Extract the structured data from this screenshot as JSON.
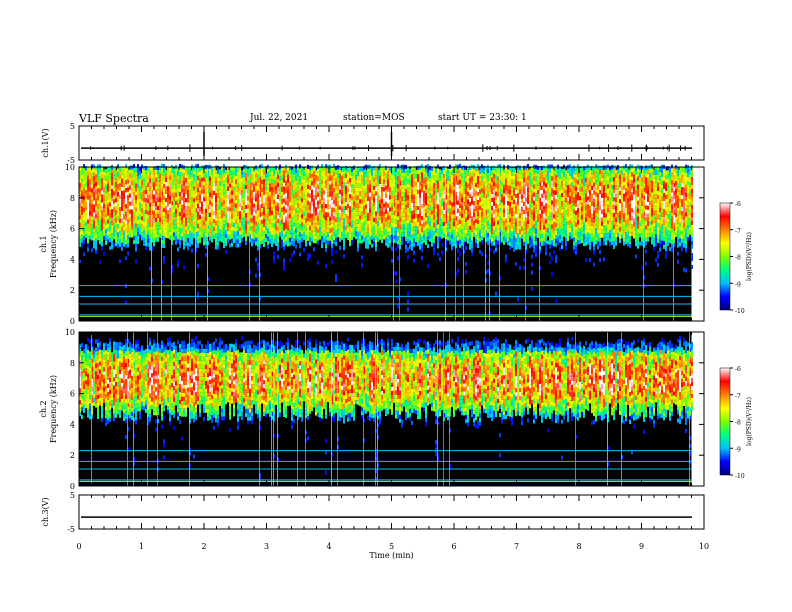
{
  "header": {
    "title": "VLF Spectra",
    "date": "Jul. 22, 2021",
    "station": "station=MOS",
    "start_ut": "start UT =  23:30: 1"
  },
  "chart_data": [
    {
      "type": "line",
      "panel": "ch1-waveform",
      "ylabel": "ch.1(V)",
      "ylim": [
        -5,
        5
      ],
      "yticks": [
        "5",
        "-5"
      ],
      "xlim": [
        0,
        10
      ]
    },
    {
      "type": "heatmap",
      "panel": "ch1-spectrogram",
      "ylabel": "ch.1\nFrequency (kHz)",
      "ylim": [
        0,
        10
      ],
      "yticks": [
        "0",
        "2",
        "4",
        "6",
        "8",
        "10"
      ],
      "xlim": [
        0,
        10
      ],
      "x_end_min": 9.8,
      "intense_band_khz": [
        6,
        9.2
      ],
      "colorbar": {
        "label": "log(PSD)(V²/Hz)",
        "range": [
          -10,
          -6
        ],
        "ticks": [
          "-6",
          "-7",
          "-8",
          "-9",
          "-10"
        ]
      }
    },
    {
      "type": "heatmap",
      "panel": "ch2-spectrogram",
      "ylabel": "ch.2\nFrequency (kHz)",
      "ylim": [
        0,
        10
      ],
      "yticks": [
        "0",
        "2",
        "4",
        "6",
        "8",
        "10"
      ],
      "xlim": [
        0,
        10
      ],
      "x_end_min": 9.8,
      "intense_band_khz": [
        5.5,
        8
      ],
      "colorbar": {
        "label": "log(PSD)(V²/Hz)",
        "range": [
          -10,
          -6
        ],
        "ticks": [
          "-6",
          "-7",
          "-8",
          "-9",
          "-10"
        ]
      }
    },
    {
      "type": "line",
      "panel": "ch3-waveform",
      "ylabel": "ch.3(V)",
      "ylim": [
        -5,
        5
      ],
      "yticks": [
        "5",
        "-5"
      ],
      "xlim": [
        0,
        10
      ],
      "xlabel": "Time (min)",
      "xticks": [
        "0",
        "1",
        "2",
        "3",
        "4",
        "5",
        "6",
        "7",
        "8",
        "9",
        "10"
      ]
    }
  ],
  "colors": {
    "colormap": [
      "#000080",
      "#0000ff",
      "#00c0ff",
      "#00ff80",
      "#80ff00",
      "#ffff00",
      "#ff8000",
      "#ff0000",
      "#ffffff"
    ],
    "background": "#000000"
  }
}
